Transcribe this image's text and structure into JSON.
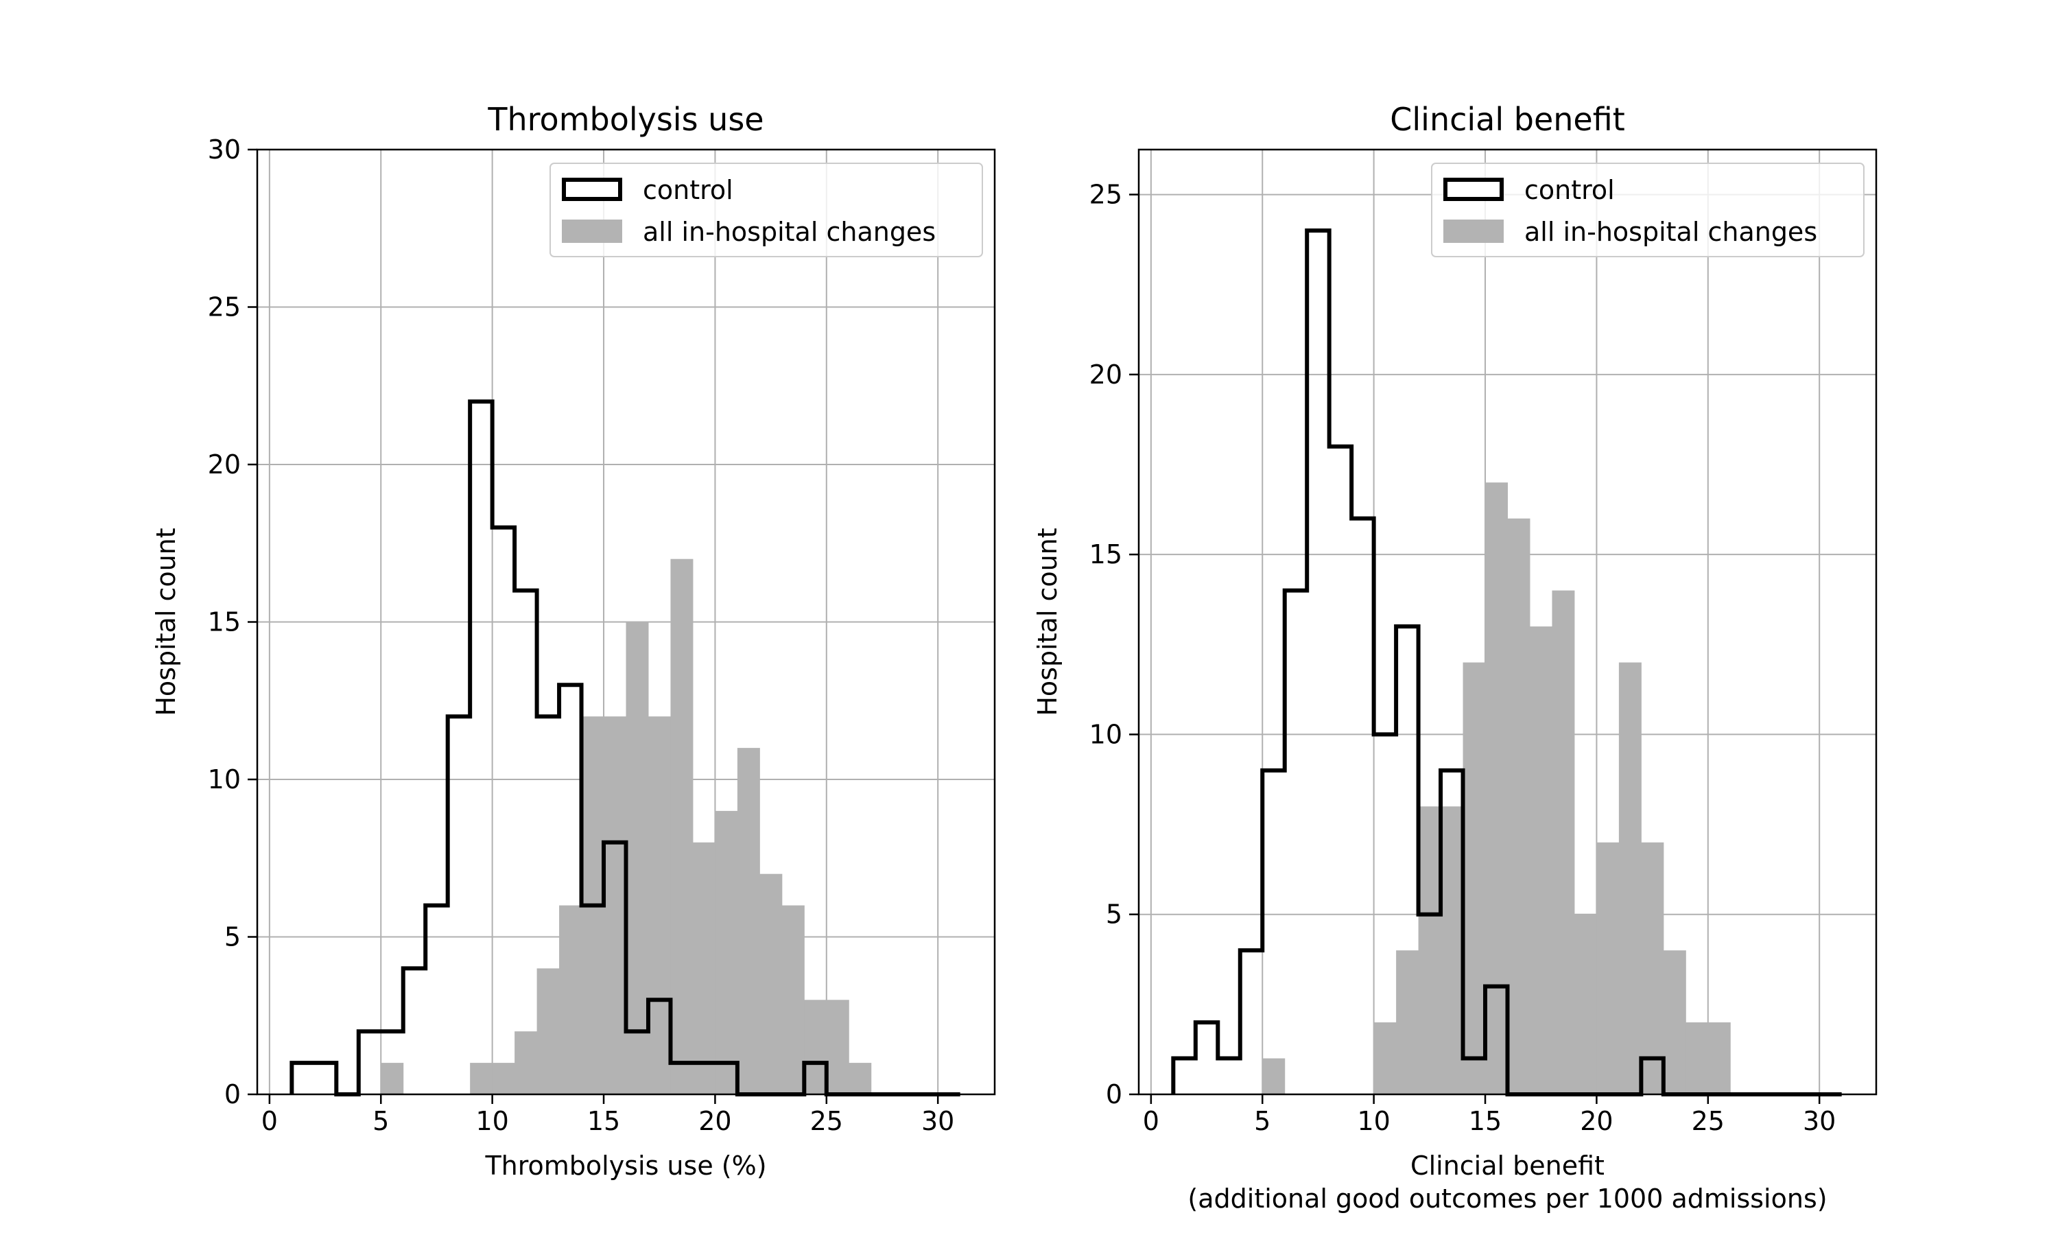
{
  "chart_data": [
    {
      "type": "histogram",
      "title": "Thrombolysis use",
      "xlabel": "Thrombolysis use (%)",
      "ylabel": "Hospital count",
      "xlim": [
        -0.55,
        32.55
      ],
      "ylim": [
        0,
        30
      ],
      "xticks": [
        0,
        5,
        10,
        15,
        20,
        25,
        30
      ],
      "yticks": [
        0,
        5,
        10,
        15,
        20,
        25,
        30
      ],
      "grid": true,
      "legend_position": "top-right",
      "bin_edges": [
        1,
        2,
        3,
        4,
        5,
        6,
        7,
        8,
        9,
        10,
        11,
        12,
        13,
        14,
        15,
        16,
        17,
        18,
        19,
        20,
        21,
        22,
        23,
        24,
        25,
        26,
        27,
        28,
        29,
        30,
        31
      ],
      "series": [
        {
          "name": "control",
          "style": "step",
          "color": "#000000",
          "values": [
            1,
            1,
            0,
            2,
            2,
            4,
            6,
            12,
            22,
            18,
            16,
            12,
            13,
            6,
            8,
            2,
            3,
            1,
            1,
            1,
            0,
            0,
            0,
            1,
            0,
            0,
            0,
            0,
            0,
            0
          ]
        },
        {
          "name": "all in-hospital changes",
          "style": "filled",
          "color": "#b3b3b3",
          "values": [
            0,
            0,
            0,
            0,
            1,
            0,
            0,
            0,
            1,
            1,
            2,
            4,
            6,
            12,
            12,
            15,
            12,
            17,
            8,
            9,
            11,
            7,
            6,
            3,
            3,
            1,
            0,
            0,
            0,
            0
          ]
        }
      ]
    },
    {
      "type": "histogram",
      "title": "Clincial benefit",
      "xlabel": "Clincial benefit",
      "xlabel_line2": "(additional good outcomes per 1000 admissions)",
      "ylabel": "Hospital count",
      "xlim": [
        -0.55,
        32.55
      ],
      "ylim": [
        0,
        26.25
      ],
      "xticks": [
        0,
        5,
        10,
        15,
        20,
        25,
        30
      ],
      "yticks": [
        0,
        5,
        10,
        15,
        20,
        25
      ],
      "grid": true,
      "legend_position": "top-right",
      "bin_edges": [
        1,
        2,
        3,
        4,
        5,
        6,
        7,
        8,
        9,
        10,
        11,
        12,
        13,
        14,
        15,
        16,
        17,
        18,
        19,
        20,
        21,
        22,
        23,
        24,
        25,
        26,
        27,
        28,
        29,
        30,
        31
      ],
      "series": [
        {
          "name": "control",
          "style": "step",
          "color": "#000000",
          "values": [
            1,
            2,
            1,
            4,
            9,
            14,
            24,
            18,
            16,
            10,
            13,
            5,
            9,
            1,
            3,
            0,
            0,
            0,
            0,
            0,
            0,
            1,
            0,
            0,
            0,
            0,
            0,
            0,
            0,
            0
          ]
        },
        {
          "name": "all in-hospital changes",
          "style": "filled",
          "color": "#b3b3b3",
          "values": [
            0,
            0,
            0,
            0,
            1,
            0,
            0,
            0,
            0,
            2,
            4,
            8,
            8,
            12,
            17,
            16,
            13,
            14,
            5,
            7,
            12,
            7,
            4,
            2,
            2,
            0,
            0,
            0,
            0,
            0
          ]
        }
      ]
    }
  ]
}
